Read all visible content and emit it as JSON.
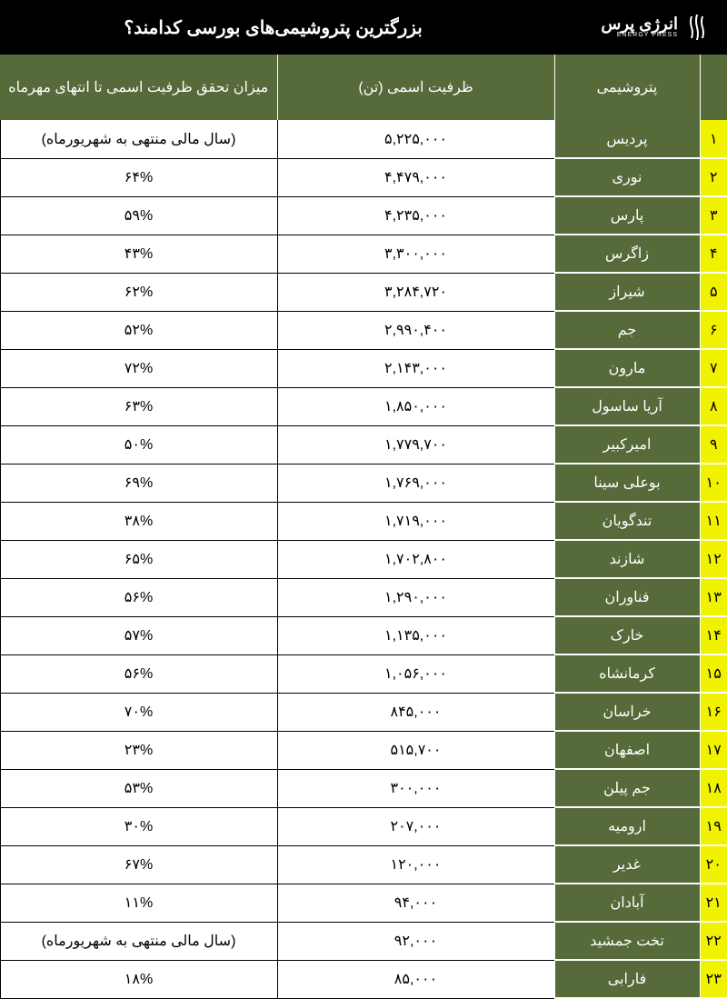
{
  "header": {
    "title": "بزرگترین پتروشیمی‌های بورسی کدامند؟",
    "logo_main": "انرژی پرس",
    "logo_sub": "ENERGY PRESS"
  },
  "table": {
    "columns": {
      "rank": "",
      "name": "پتروشیمی",
      "capacity": "ظرفیت اسمی (تن)",
      "realization": "میزان تحقق ظرفیت اسمی تا انتهای مهرماه"
    },
    "rows": [
      {
        "rank": "۱",
        "name": "پردیس",
        "capacity": "۵,۲۲۵,۰۰۰",
        "realization": "(سال مالی منتهی به شهریورماه)"
      },
      {
        "rank": "۲",
        "name": "نوری",
        "capacity": "۴,۴۷۹,۰۰۰",
        "realization": "۶۴%"
      },
      {
        "rank": "۳",
        "name": "پارس",
        "capacity": "۴,۲۳۵,۰۰۰",
        "realization": "۵۹%"
      },
      {
        "rank": "۴",
        "name": "زاگرس",
        "capacity": "۳,۳۰۰,۰۰۰",
        "realization": "۴۳%"
      },
      {
        "rank": "۵",
        "name": "شیراز",
        "capacity": "۳,۲۸۴,۷۲۰",
        "realization": "۶۲%"
      },
      {
        "rank": "۶",
        "name": "جم",
        "capacity": "۲,۹۹۰,۴۰۰",
        "realization": "۵۲%"
      },
      {
        "rank": "۷",
        "name": "مارون",
        "capacity": "۲,۱۴۳,۰۰۰",
        "realization": "۷۲%"
      },
      {
        "rank": "۸",
        "name": "آریا ساسول",
        "capacity": "۱,۸۵۰,۰۰۰",
        "realization": "۶۳%"
      },
      {
        "rank": "۹",
        "name": "امیرکبیر",
        "capacity": "۱,۷۷۹,۷۰۰",
        "realization": "۵۰%"
      },
      {
        "rank": "۱۰",
        "name": "بوعلی سینا",
        "capacity": "۱,۷۶۹,۰۰۰",
        "realization": "۶۹%"
      },
      {
        "rank": "۱۱",
        "name": "تندگویان",
        "capacity": "۱,۷۱۹,۰۰۰",
        "realization": "۳۸%"
      },
      {
        "rank": "۱۲",
        "name": "شازند",
        "capacity": "۱,۷۰۲,۸۰۰",
        "realization": "۶۵%"
      },
      {
        "rank": "۱۳",
        "name": "فناوران",
        "capacity": "۱,۲۹۰,۰۰۰",
        "realization": "۵۶%"
      },
      {
        "rank": "۱۴",
        "name": "خارک",
        "capacity": "۱,۱۳۵,۰۰۰",
        "realization": "۵۷%"
      },
      {
        "rank": "۱۵",
        "name": "کرمانشاه",
        "capacity": "۱,۰۵۶,۰۰۰",
        "realization": "۵۶%"
      },
      {
        "rank": "۱۶",
        "name": "خراسان",
        "capacity": "۸۴۵,۰۰۰",
        "realization": "۷۰%"
      },
      {
        "rank": "۱۷",
        "name": "اصفهان",
        "capacity": "۵۱۵,۷۰۰",
        "realization": "۲۳%"
      },
      {
        "rank": "۱۸",
        "name": "جم پیلن",
        "capacity": "۳۰۰,۰۰۰",
        "realization": "۵۳%"
      },
      {
        "rank": "۱۹",
        "name": "ارومیه",
        "capacity": "۲۰۷,۰۰۰",
        "realization": "۳۰%"
      },
      {
        "rank": "۲۰",
        "name": "غدیر",
        "capacity": "۱۲۰,۰۰۰",
        "realization": "۶۷%"
      },
      {
        "rank": "۲۱",
        "name": "آبادان",
        "capacity": "۹۴,۰۰۰",
        "realization": "۱۱%"
      },
      {
        "rank": "۲۲",
        "name": "تخت جمشید",
        "capacity": "۹۲,۰۰۰",
        "realization": "(سال مالی منتهی به شهریورماه)"
      },
      {
        "rank": "۲۳",
        "name": "فارابی",
        "capacity": "۸۵,۰۰۰",
        "realization": "۱۸%"
      }
    ]
  },
  "styles": {
    "header_bg": "#000000",
    "olive": "#566a3a",
    "yellow": "#f1f200",
    "white": "#ffffff",
    "black": "#000000"
  }
}
